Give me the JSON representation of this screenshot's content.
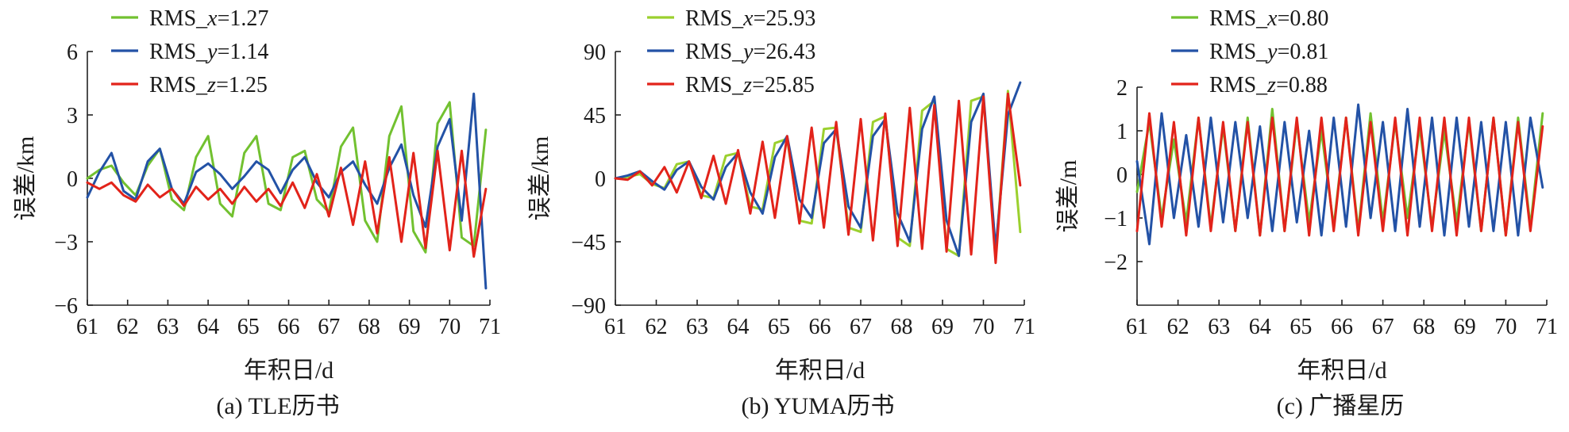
{
  "chart_data": [
    {
      "type": "line",
      "caption": "(a) TLE历书",
      "xlabel": "年积日/d",
      "ylabel": "误差/km",
      "xlim": [
        61,
        71
      ],
      "ylim": [
        -6,
        6
      ],
      "xticks": [
        "61",
        "62",
        "63",
        "64",
        "65",
        "66",
        "67",
        "68",
        "69",
        "70",
        "71"
      ],
      "yticks": [
        "6",
        "3",
        "0",
        "−3",
        "−6"
      ],
      "yticks_values": [
        6,
        3,
        0,
        -3,
        -6
      ],
      "legend": [
        {
          "name": "RMS_x=1.27",
          "prefix": "RMS_",
          "var": "x",
          "suffix": "=1.27",
          "color": "#72c130"
        },
        {
          "name": "RMS_y=1.14",
          "prefix": "RMS_",
          "var": "y",
          "suffix": "=1.14",
          "color": "#2352a6"
        },
        {
          "name": "RMS_z=1.25",
          "prefix": "RMS_",
          "var": "z",
          "suffix": "=1.25",
          "color": "#e2231a"
        }
      ],
      "series": [
        {
          "color": "#72c130",
          "x": [
            61,
            61.3,
            61.6,
            61.9,
            62.2,
            62.5,
            62.8,
            63.1,
            63.4,
            63.7,
            64,
            64.3,
            64.6,
            64.9,
            65.2,
            65.5,
            65.8,
            66.1,
            66.4,
            66.7,
            67,
            67.3,
            67.6,
            67.9,
            68.2,
            68.5,
            68.8,
            69.1,
            69.4,
            69.7,
            70,
            70.3,
            70.6,
            70.9
          ],
          "y": [
            0,
            0.4,
            0.6,
            -0.2,
            -0.8,
            0.6,
            1.4,
            -1.0,
            -1.5,
            1.0,
            2.0,
            -1.2,
            -1.8,
            1.2,
            2.0,
            -1.2,
            -1.5,
            1.0,
            1.3,
            -1.0,
            -1.6,
            1.5,
            2.4,
            -2.0,
            -3.0,
            2.0,
            3.4,
            -2.5,
            -3.5,
            2.6,
            3.6,
            -2.8,
            -3.2,
            2.3
          ]
        },
        {
          "color": "#2352a6",
          "x": [
            61,
            61.3,
            61.6,
            61.9,
            62.2,
            62.5,
            62.8,
            63.1,
            63.4,
            63.7,
            64,
            64.3,
            64.6,
            64.9,
            65.2,
            65.5,
            65.8,
            66.1,
            66.4,
            66.7,
            67,
            67.3,
            67.6,
            67.9,
            68.2,
            68.5,
            68.8,
            69.1,
            69.4,
            69.7,
            70,
            70.3,
            70.6,
            70.9
          ],
          "y": [
            -0.9,
            0.3,
            1.2,
            -0.6,
            -1.0,
            0.8,
            1.4,
            -0.5,
            -1.2,
            0.3,
            0.7,
            0.2,
            -0.5,
            0.1,
            0.8,
            0.4,
            -0.7,
            0.4,
            1.0,
            -0.2,
            -0.9,
            0.3,
            0.8,
            -0.3,
            -1.2,
            0.5,
            1.6,
            -0.8,
            -2.3,
            1.5,
            2.8,
            -2.0,
            4.0,
            -5.2
          ]
        },
        {
          "color": "#e2231a",
          "x": [
            61,
            61.3,
            61.6,
            61.9,
            62.2,
            62.5,
            62.8,
            63.1,
            63.4,
            63.7,
            64,
            64.3,
            64.6,
            64.9,
            65.2,
            65.5,
            65.8,
            66.1,
            66.4,
            66.7,
            67,
            67.3,
            67.6,
            67.9,
            68.2,
            68.5,
            68.8,
            69.1,
            69.4,
            69.7,
            70,
            70.3,
            70.6,
            70.9
          ],
          "y": [
            -0.2,
            -0.5,
            -0.2,
            -0.8,
            -1.1,
            -0.3,
            -0.9,
            -0.5,
            -1.3,
            -0.4,
            -1.0,
            -0.5,
            -1.2,
            -0.4,
            -1.1,
            -0.5,
            -1.3,
            -0.2,
            -1.4,
            0.2,
            -1.8,
            0.5,
            -2.2,
            0.8,
            -2.6,
            1.0,
            -3.0,
            1.2,
            -3.3,
            1.3,
            -3.4,
            1.3,
            -3.7,
            -0.5
          ]
        }
      ]
    },
    {
      "type": "line",
      "caption": "(b) YUMA历书",
      "xlabel": "年积日/d",
      "ylabel": "误差/km",
      "xlim": [
        61,
        71
      ],
      "ylim": [
        -90,
        90
      ],
      "xticks": [
        "61",
        "62",
        "63",
        "64",
        "65",
        "66",
        "67",
        "68",
        "69",
        "70",
        "71"
      ],
      "yticks": [
        "90",
        "45",
        "0",
        "−45",
        "−90"
      ],
      "yticks_values": [
        90,
        45,
        0,
        -45,
        -90
      ],
      "legend": [
        {
          "name": "RMS_x=25.93",
          "prefix": "RMS_",
          "var": "x",
          "suffix": "=25.93",
          "color": "#9bd02e"
        },
        {
          "name": "RMS_y=26.43",
          "prefix": "RMS_",
          "var": "y",
          "suffix": "=26.43",
          "color": "#2352a6"
        },
        {
          "name": "RMS_z=25.85",
          "prefix": "RMS_",
          "var": "z",
          "suffix": "=25.85",
          "color": "#e2231a"
        }
      ],
      "series": [
        {
          "color": "#9bd02e",
          "x": [
            61,
            61.3,
            61.6,
            61.9,
            62.2,
            62.5,
            62.8,
            63.1,
            63.4,
            63.7,
            64,
            64.3,
            64.6,
            64.9,
            65.2,
            65.5,
            65.8,
            66.1,
            66.4,
            66.7,
            67,
            67.3,
            67.6,
            67.9,
            68.2,
            68.5,
            68.8,
            69.1,
            69.4,
            69.7,
            70,
            70.3,
            70.6,
            70.9
          ],
          "y": [
            0,
            1,
            3,
            -4,
            -7,
            10,
            12,
            -12,
            -14,
            16,
            18,
            -20,
            -22,
            25,
            28,
            -30,
            -32,
            35,
            36,
            -35,
            -38,
            40,
            44,
            -42,
            -48,
            48,
            55,
            -50,
            -55,
            55,
            58,
            -55,
            62,
            -38
          ]
        },
        {
          "color": "#2352a6",
          "x": [
            61,
            61.3,
            61.6,
            61.9,
            62.2,
            62.5,
            62.8,
            63.1,
            63.4,
            63.7,
            64,
            64.3,
            64.6,
            64.9,
            65.2,
            65.5,
            65.8,
            66.1,
            66.4,
            66.7,
            67,
            67.3,
            67.6,
            67.9,
            68.2,
            68.5,
            68.8,
            69.1,
            69.4,
            69.7,
            70,
            70.3,
            70.6,
            70.9
          ],
          "y": [
            0,
            2,
            5,
            -2,
            -8,
            6,
            12,
            -6,
            -15,
            8,
            18,
            -10,
            -25,
            15,
            30,
            -15,
            -28,
            25,
            35,
            -20,
            -35,
            30,
            42,
            -25,
            -45,
            35,
            58,
            -30,
            -55,
            40,
            60,
            -50,
            45,
            68
          ]
        },
        {
          "color": "#e2231a",
          "x": [
            61,
            61.3,
            61.6,
            61.9,
            62.2,
            62.5,
            62.8,
            63.1,
            63.4,
            63.7,
            64,
            64.3,
            64.6,
            64.9,
            65.2,
            65.5,
            65.8,
            66.1,
            66.4,
            66.7,
            67,
            67.3,
            67.6,
            67.9,
            68.2,
            68.5,
            68.8,
            69.1,
            69.4,
            69.7,
            70,
            70.3,
            70.6,
            70.9
          ],
          "y": [
            0,
            -1,
            5,
            -5,
            8,
            -10,
            12,
            -14,
            16,
            -18,
            20,
            -25,
            26,
            -28,
            30,
            -32,
            36,
            -35,
            40,
            -40,
            42,
            -44,
            46,
            -48,
            50,
            -50,
            52,
            -52,
            55,
            -54,
            58,
            -60,
            60,
            -5
          ]
        }
      ]
    },
    {
      "type": "line",
      "caption": "(c) 广播星历",
      "xlabel": "年积日/d",
      "ylabel": "误差/m",
      "xlim": [
        61,
        71
      ],
      "ylim": [
        -3,
        2
      ],
      "xticks": [
        "61",
        "62",
        "63",
        "64",
        "65",
        "66",
        "67",
        "68",
        "69",
        "70",
        "71"
      ],
      "yticks": [
        "2",
        "1",
        "0",
        "−1",
        "−2"
      ],
      "yticks_values": [
        2,
        1,
        0,
        -1,
        -2
      ],
      "legend": [
        {
          "name": "RMS_x=0.80",
          "prefix": "RMS_",
          "var": "x",
          "suffix": "=0.80",
          "color": "#72c130"
        },
        {
          "name": "RMS_y=0.81",
          "prefix": "RMS_",
          "var": "y",
          "suffix": "=0.81",
          "color": "#2352a6"
        },
        {
          "name": "RMS_z=0.88",
          "prefix": "RMS_",
          "var": "z",
          "suffix": "=0.88",
          "color": "#e2231a"
        }
      ],
      "series": [
        {
          "color": "#72c130",
          "x": [
            61,
            61.3,
            61.6,
            61.9,
            62.2,
            62.5,
            62.8,
            63.1,
            63.4,
            63.7,
            64,
            64.3,
            64.6,
            64.9,
            65.2,
            65.5,
            65.8,
            66.1,
            66.4,
            66.7,
            67,
            67.3,
            67.6,
            67.9,
            68.2,
            68.5,
            68.8,
            69.1,
            69.4,
            69.7,
            70,
            70.3,
            70.6,
            70.9
          ],
          "y": [
            -0.4,
            1.2,
            -1.0,
            0.8,
            -1.1,
            1.3,
            -1.2,
            1.1,
            -1.3,
            1.3,
            -1.4,
            1.5,
            -1.3,
            1.2,
            -1.1,
            1.0,
            -1.2,
            1.3,
            -1.3,
            1.4,
            -1.1,
            1.2,
            -1.0,
            1.1,
            -1.2,
            1.0,
            -1.1,
            1.2,
            -1.3,
            1.3,
            -1.4,
            1.3,
            -1.2,
            1.4
          ]
        },
        {
          "color": "#2352a6",
          "x": [
            61,
            61.3,
            61.6,
            61.9,
            62.2,
            62.5,
            62.8,
            63.1,
            63.4,
            63.7,
            64,
            64.3,
            64.6,
            64.9,
            65.2,
            65.5,
            65.8,
            66.1,
            66.4,
            66.7,
            67,
            67.3,
            67.6,
            67.9,
            68.2,
            68.5,
            68.8,
            69.1,
            69.4,
            69.7,
            70,
            70.3,
            70.6,
            70.9
          ],
          "y": [
            0.3,
            -1.6,
            1.4,
            -1.0,
            0.9,
            -1.2,
            1.3,
            -1.1,
            1.2,
            -1.0,
            1.1,
            -1.3,
            1.2,
            -1.1,
            1.0,
            -1.4,
            1.3,
            -1.2,
            1.6,
            -1.0,
            1.2,
            -1.3,
            1.5,
            -1.2,
            1.3,
            -1.4,
            1.3,
            -1.2,
            1.2,
            -1.3,
            1.2,
            -1.4,
            1.3,
            -0.3
          ]
        },
        {
          "color": "#e2231a",
          "x": [
            61,
            61.3,
            61.6,
            61.9,
            62.2,
            62.5,
            62.8,
            63.1,
            63.4,
            63.7,
            64,
            64.3,
            64.6,
            64.9,
            65.2,
            65.5,
            65.8,
            66.1,
            66.4,
            66.7,
            67,
            67.3,
            67.6,
            67.9,
            68.2,
            68.5,
            68.8,
            69.1,
            69.4,
            69.7,
            70,
            70.3,
            70.6,
            70.9
          ],
          "y": [
            -1.3,
            1.4,
            -1.2,
            1.2,
            -1.4,
            1.3,
            -1.3,
            1.2,
            -1.3,
            1.2,
            -1.4,
            1.3,
            -1.3,
            1.3,
            -1.4,
            1.3,
            -1.3,
            1.3,
            -1.4,
            1.2,
            -1.3,
            1.3,
            -1.4,
            1.3,
            -1.3,
            1.3,
            -1.4,
            1.3,
            -1.3,
            1.3,
            -1.4,
            1.2,
            -1.3,
            1.1
          ]
        }
      ]
    }
  ]
}
